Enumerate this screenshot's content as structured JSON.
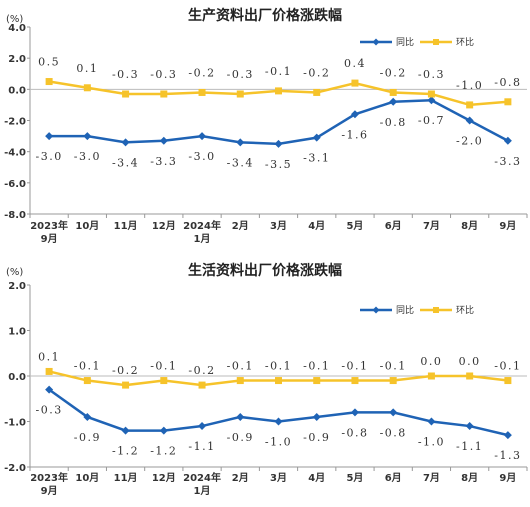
{
  "chart_data": [
    {
      "type": "line",
      "title": "生产资料出厂价格涨跌幅",
      "unit": "(%)",
      "categories": [
        [
          "2023年",
          "9月"
        ],
        [
          "10月"
        ],
        [
          "11月"
        ],
        [
          "12月"
        ],
        [
          "2024年",
          "1月"
        ],
        [
          "2月"
        ],
        [
          "3月"
        ],
        [
          "4月"
        ],
        [
          "5月"
        ],
        [
          "6月"
        ],
        [
          "7月"
        ],
        [
          "8月"
        ],
        [
          "9月"
        ]
      ],
      "ylim": [
        -8.0,
        4.0
      ],
      "yticks": [
        "4.0",
        "2.0",
        "0.0",
        "-2.0",
        "-4.0",
        "-6.0",
        "-8.0"
      ],
      "legend_position": "top-right",
      "series": [
        {
          "name": "同比",
          "color": "#1f63b5",
          "marker": "diamond",
          "values": [
            -3.0,
            -3.0,
            -3.4,
            -3.3,
            -3.0,
            -3.4,
            -3.5,
            -3.1,
            -1.6,
            -0.8,
            -0.7,
            -2.0,
            -3.3
          ],
          "labels": [
            "-3.0",
            "-3.0",
            "-3.4",
            "-3.3",
            "-3.0",
            "-3.4",
            "-3.5",
            "-3.1",
            "-1.6",
            "-0.8",
            "-0.7",
            "-2.0",
            "-3.3"
          ]
        },
        {
          "name": "环比",
          "color": "#f6c32a",
          "marker": "square",
          "values": [
            0.5,
            0.1,
            -0.3,
            -0.3,
            -0.2,
            -0.3,
            -0.1,
            -0.2,
            0.4,
            -0.2,
            -0.3,
            -1.0,
            -0.8
          ],
          "labels": [
            "0.5",
            "0.1",
            "-0.3",
            "-0.3",
            "-0.2",
            "-0.3",
            "-0.1",
            "-0.2",
            "0.4",
            "-0.2",
            "-0.3",
            "-1.0",
            "-0.8"
          ]
        }
      ]
    },
    {
      "type": "line",
      "title": "生活资料出厂价格涨跌幅",
      "unit": "(%)",
      "categories": [
        [
          "2023年",
          "9月"
        ],
        [
          "10月"
        ],
        [
          "11月"
        ],
        [
          "12月"
        ],
        [
          "2024年",
          "1月"
        ],
        [
          "2月"
        ],
        [
          "3月"
        ],
        [
          "4月"
        ],
        [
          "5月"
        ],
        [
          "6月"
        ],
        [
          "7月"
        ],
        [
          "8月"
        ],
        [
          "9月"
        ]
      ],
      "ylim": [
        -2.0,
        2.0
      ],
      "yticks": [
        "2.0",
        "1.0",
        "0.0",
        "-1.0",
        "-2.0"
      ],
      "legend_position": "top-right",
      "series": [
        {
          "name": "同比",
          "color": "#1f63b5",
          "marker": "diamond",
          "values": [
            -0.3,
            -0.9,
            -1.2,
            -1.2,
            -1.1,
            -0.9,
            -1.0,
            -0.9,
            -0.8,
            -0.8,
            -1.0,
            -1.1,
            -1.3
          ],
          "labels": [
            "-0.3",
            "-0.9",
            "-1.2",
            "-1.2",
            "-1.1",
            "-0.9",
            "-1.0",
            "-0.9",
            "-0.8",
            "-0.8",
            "-1.0",
            "-1.1",
            "-1.3"
          ]
        },
        {
          "name": "环比",
          "color": "#f6c32a",
          "marker": "square",
          "values": [
            0.1,
            -0.1,
            -0.2,
            -0.1,
            -0.2,
            -0.1,
            -0.1,
            -0.1,
            -0.1,
            -0.1,
            0.0,
            0.0,
            -0.1
          ],
          "labels": [
            "0.1",
            "-0.1",
            "-0.2",
            "-0.1",
            "-0.2",
            "-0.1",
            "-0.1",
            "-0.1",
            "-0.1",
            "-0.1",
            "0.0",
            "0.0",
            "-0.1"
          ]
        }
      ]
    }
  ]
}
